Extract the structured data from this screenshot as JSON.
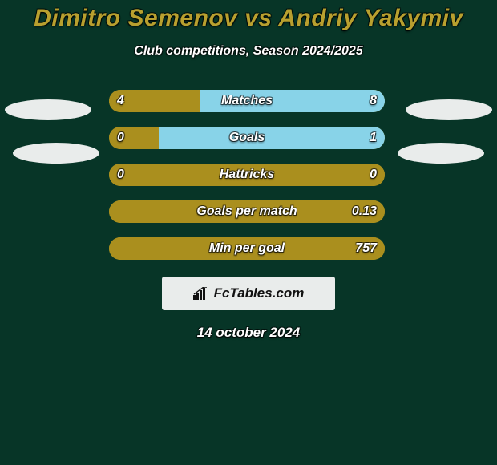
{
  "colors": {
    "page_bg": "#073527",
    "title": "#b8a02f",
    "text_white": "#ffffff",
    "left_bar": "#aa8f1e",
    "right_bar": "#88d3e8",
    "ellipse_fill": "#e9eceb",
    "brand_bg": "#e9eceb",
    "brand_text": "#111111"
  },
  "title": "Dimitro Semenov vs Andriy Yakymiv",
  "subtitle": "Club competitions, Season 2024/2025",
  "brand": "FcTables.com",
  "date": "14 october 2024",
  "bar": {
    "track_width": 344,
    "height": 28,
    "radius": 14,
    "label_fontsize": 16,
    "value_fontsize": 16
  },
  "stats": [
    {
      "label": "Matches",
      "left_val": "4",
      "right_val": "8",
      "left_pct": 33,
      "right_pct": 67
    },
    {
      "label": "Goals",
      "left_val": "0",
      "right_val": "1",
      "left_pct": 18,
      "right_pct": 82
    },
    {
      "label": "Hattricks",
      "left_val": "0",
      "right_val": "0",
      "left_pct": 100,
      "right_pct": 0
    },
    {
      "label": "Goals per match",
      "left_val": "",
      "right_val": "0.13",
      "left_pct": 100,
      "right_pct": 0
    },
    {
      "label": "Min per goal",
      "left_val": "",
      "right_val": "757",
      "left_pct": 100,
      "right_pct": 0
    }
  ]
}
